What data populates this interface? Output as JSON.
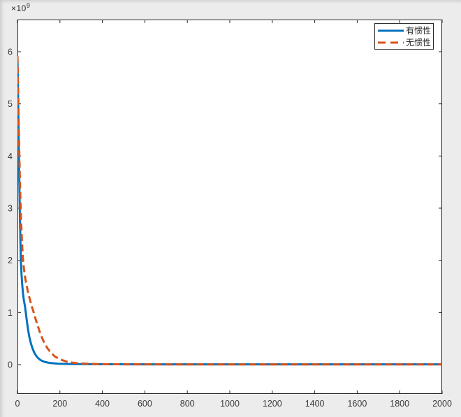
{
  "window": {
    "background": "#ececec"
  },
  "chart_data": {
    "type": "line",
    "title": "",
    "xlabel": "",
    "ylabel": "",
    "grid": false,
    "plot_background": "#ffffff",
    "axis_color": "#262626",
    "tick_label_color": "#3a3a3a",
    "x_ticks": [
      0,
      200,
      400,
      600,
      800,
      1000,
      1200,
      1400,
      1600,
      1800,
      2000
    ],
    "y_ticks": [
      0,
      1,
      2,
      3,
      4,
      5,
      6
    ],
    "y_offset_label": {
      "base": "×10",
      "exponent": "9"
    },
    "y_unit_multiplier": 1000000000,
    "xlim": [
      0,
      2000
    ],
    "ylim_in_1e9": [
      -0.5625,
      6.6161
    ],
    "legend_position": "top-right",
    "series": [
      {
        "name": "有惯性",
        "color": "#0072BD",
        "line_style": "solid",
        "line_width": 3,
        "x": [
          0,
          2,
          4,
          6,
          8,
          10,
          12,
          14,
          16,
          19,
          22,
          26,
          30,
          35,
          40,
          45,
          50,
          56,
          63,
          70,
          78,
          87,
          96,
          106,
          118,
          132,
          150,
          170,
          195,
          225,
          260,
          300,
          360,
          450,
          600,
          800,
          1100,
          1500,
          2000
        ],
        "y_1e9": [
          5.92,
          5.38,
          4.82,
          4.27,
          3.73,
          3.22,
          2.76,
          2.34,
          1.98,
          1.74,
          1.55,
          1.37,
          1.24,
          1.13,
          0.97,
          0.81,
          0.67,
          0.53,
          0.41,
          0.32,
          0.24,
          0.175,
          0.13,
          0.095,
          0.067,
          0.048,
          0.034,
          0.025,
          0.018,
          0.014,
          0.011,
          0.009,
          0.008,
          0.007,
          0.006,
          0.006,
          0.006,
          0.006,
          0.006
        ]
      },
      {
        "name": "无惯性",
        "color": "#D95319",
        "line_style": "dashed",
        "line_width": 3,
        "x": [
          0,
          2,
          4,
          6,
          8,
          10,
          12,
          14,
          16,
          19,
          22,
          26,
          30,
          35,
          40,
          45,
          50,
          58,
          66,
          75,
          85,
          95,
          105,
          115,
          125,
          140,
          155,
          175,
          200,
          230,
          260,
          300,
          350,
          420,
          520,
          700,
          1000,
          1500,
          2000
        ],
        "y_1e9": [
          5.92,
          5.52,
          5.08,
          4.65,
          4.24,
          3.85,
          3.49,
          3.16,
          2.86,
          2.55,
          2.3,
          2.02,
          1.86,
          1.7,
          1.58,
          1.48,
          1.38,
          1.26,
          1.13,
          1.02,
          0.88,
          0.75,
          0.63,
          0.52,
          0.43,
          0.32,
          0.24,
          0.16,
          0.1,
          0.06,
          0.038,
          0.022,
          0.013,
          0.007,
          0.005,
          0.004,
          0.004,
          0.004,
          0.004
        ]
      }
    ]
  }
}
